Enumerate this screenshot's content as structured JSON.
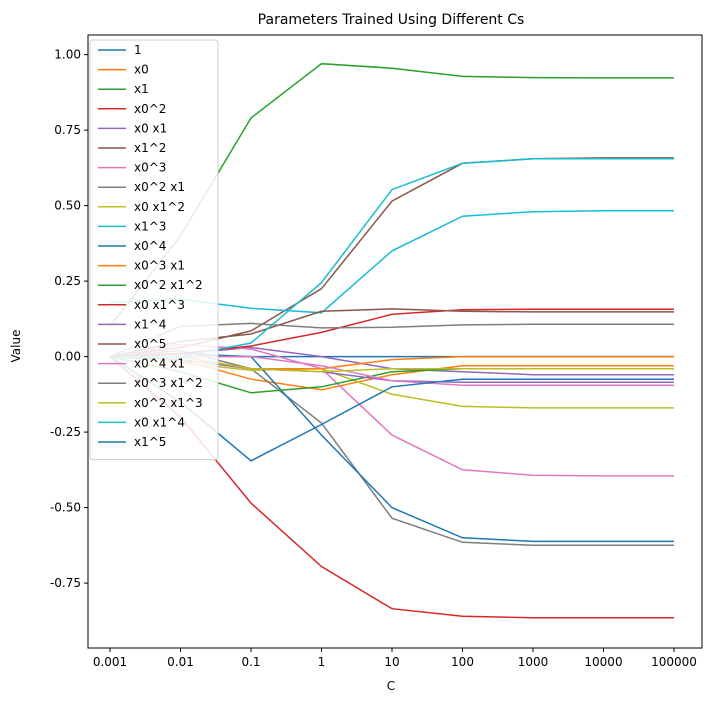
{
  "chart_data": {
    "type": "line",
    "title": "Parameters Trained Using Different Cs",
    "xlabel": "C",
    "ylabel": "Value",
    "x_scale": "log",
    "categories": [
      "0.001",
      "0.01",
      "0.1",
      "1",
      "10",
      "100",
      "1000",
      "10000",
      "100000"
    ],
    "x": [
      0.001,
      0.01,
      0.1,
      1,
      10,
      100,
      1000,
      10000,
      100000
    ],
    "ylim": [
      -0.965,
      1.065
    ],
    "yticks": [
      "-0.75",
      "-0.50",
      "-0.25",
      "0.00",
      "0.25",
      "0.50",
      "0.75",
      "1.00"
    ],
    "ytick_values": [
      -0.75,
      -0.5,
      -0.25,
      0.0,
      0.25,
      0.5,
      0.75,
      1.0
    ],
    "grid": false,
    "legend_position": "top-left",
    "series": [
      {
        "name": "1",
        "color": "#1f77b4",
        "values": [
          0.0,
          0.0,
          0.0,
          0.0,
          0.0,
          0.0,
          0.0,
          0.0,
          0.0
        ]
      },
      {
        "name": "x0",
        "color": "#ff7f0e",
        "values": [
          0.0,
          -0.01,
          -0.075,
          -0.11,
          -0.06,
          -0.03,
          -0.03,
          -0.03,
          -0.03
        ]
      },
      {
        "name": "x1",
        "color": "#2ca02c",
        "values": [
          0.1,
          0.4,
          0.79,
          0.97,
          0.955,
          0.928,
          0.924,
          0.923,
          0.923
        ]
      },
      {
        "name": "x0^2",
        "color": "#d62728",
        "values": [
          0.0,
          -0.2,
          -0.485,
          -0.695,
          -0.835,
          -0.86,
          -0.865,
          -0.865,
          -0.865
        ]
      },
      {
        "name": "x0 x1",
        "color": "#9467bd",
        "values": [
          0.0,
          0.01,
          0.03,
          0.0,
          -0.04,
          -0.05,
          -0.06,
          -0.06,
          -0.06
        ]
      },
      {
        "name": "x1^2",
        "color": "#8c564b",
        "values": [
          0.0,
          0.03,
          0.085,
          0.225,
          0.515,
          0.64,
          0.655,
          0.658,
          0.658
        ]
      },
      {
        "name": "x0^3",
        "color": "#e377c2",
        "values": [
          0.0,
          0.04,
          0.025,
          -0.04,
          -0.26,
          -0.375,
          -0.393,
          -0.395,
          -0.395
        ]
      },
      {
        "name": "x0^2 x1",
        "color": "#7f7f7f",
        "values": [
          0.0,
          0.02,
          -0.04,
          -0.22,
          -0.535,
          -0.615,
          -0.625,
          -0.625,
          -0.625
        ]
      },
      {
        "name": "x0 x1^2",
        "color": "#bcbd22",
        "values": [
          0.0,
          -0.02,
          -0.045,
          -0.04,
          -0.125,
          -0.165,
          -0.17,
          -0.17,
          -0.17
        ]
      },
      {
        "name": "x1^3",
        "color": "#17becf",
        "values": [
          0.18,
          0.19,
          0.16,
          0.145,
          0.35,
          0.465,
          0.48,
          0.483,
          0.483
        ]
      },
      {
        "name": "x0^4",
        "color": "#1f77b4",
        "values": [
          0.0,
          0.01,
          0.0,
          -0.26,
          -0.5,
          -0.6,
          -0.612,
          -0.612,
          -0.612
        ]
      },
      {
        "name": "x0^3 x1",
        "color": "#ff7f0e",
        "values": [
          0.0,
          0.0,
          -0.04,
          -0.04,
          -0.01,
          0.0,
          0.0,
          0.0,
          0.0
        ]
      },
      {
        "name": "x0^2 x1^2",
        "color": "#2ca02c",
        "values": [
          0.0,
          -0.05,
          -0.12,
          -0.1,
          -0.05,
          -0.04,
          -0.04,
          -0.04,
          -0.04
        ]
      },
      {
        "name": "x0 x1^3",
        "color": "#d62728",
        "values": [
          0.0,
          0.01,
          0.035,
          0.08,
          0.14,
          0.155,
          0.157,
          0.157,
          0.157
        ]
      },
      {
        "name": "x1^4",
        "color": "#9467bd",
        "values": [
          0.0,
          -0.01,
          -0.04,
          -0.05,
          -0.08,
          -0.085,
          -0.085,
          -0.085,
          -0.085
        ]
      },
      {
        "name": "x0^5",
        "color": "#8c564b",
        "values": [
          0.0,
          0.05,
          0.075,
          0.15,
          0.158,
          0.15,
          0.148,
          0.148,
          0.148
        ]
      },
      {
        "name": "x0^4 x1",
        "color": "#e377c2",
        "values": [
          0.0,
          0.0,
          0.0,
          -0.03,
          -0.08,
          -0.095,
          -0.095,
          -0.095,
          -0.095
        ]
      },
      {
        "name": "x0^3 x1^2",
        "color": "#7f7f7f",
        "values": [
          0.0,
          0.1,
          0.11,
          0.095,
          0.097,
          0.105,
          0.107,
          0.107,
          0.107
        ]
      },
      {
        "name": "x0^2 x1^3",
        "color": "#bcbd22",
        "values": [
          0.0,
          0.0,
          -0.04,
          -0.05,
          -0.04,
          -0.04,
          -0.04,
          -0.04,
          -0.04
        ]
      },
      {
        "name": "x0 x1^4",
        "color": "#17becf",
        "values": [
          0.0,
          0.0,
          0.045,
          0.245,
          0.553,
          0.64,
          0.655,
          0.655,
          0.655
        ]
      },
      {
        "name": "x1^5",
        "color": "#1f77b4",
        "values": [
          0.0,
          -0.15,
          -0.345,
          -0.225,
          -0.1,
          -0.075,
          -0.075,
          -0.075,
          -0.075
        ]
      }
    ]
  }
}
